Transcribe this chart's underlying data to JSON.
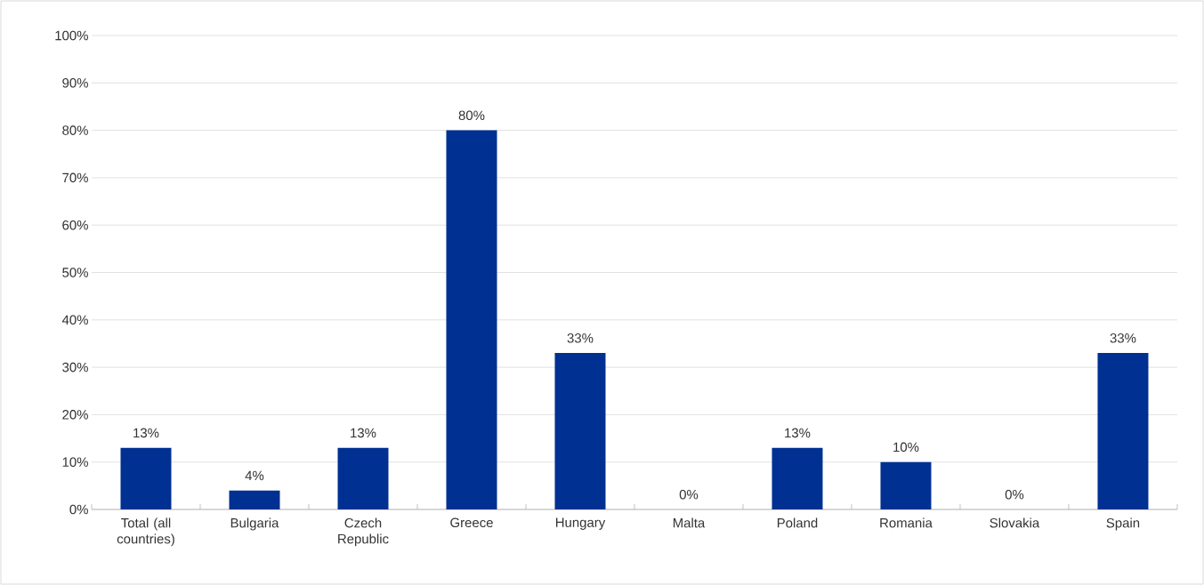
{
  "chart_data": {
    "type": "bar",
    "categories": [
      "Total (all countries)",
      "Bulgaria",
      "Czech Republic",
      "Greece",
      "Hungary",
      "Malta",
      "Poland",
      "Romania",
      "Slovakia",
      "Spain"
    ],
    "values": [
      13,
      4,
      13,
      80,
      33,
      0,
      13,
      10,
      0,
      33
    ],
    "value_labels": [
      "13%",
      "4%",
      "13%",
      "80%",
      "33%",
      "0%",
      "13%",
      "10%",
      "0%",
      "33%"
    ],
    "color": "#003092",
    "ylim": [
      0,
      100
    ],
    "yticks": [
      {
        "value": 0,
        "label": "0%"
      },
      {
        "value": 10,
        "label": "10%"
      },
      {
        "value": 20,
        "label": "20%"
      },
      {
        "value": 30,
        "label": "30%"
      },
      {
        "value": 40,
        "label": "40%"
      },
      {
        "value": 50,
        "label": "50%"
      },
      {
        "value": 60,
        "label": "60%"
      },
      {
        "value": 70,
        "label": "70%"
      },
      {
        "value": 80,
        "label": "80%"
      },
      {
        "value": 90,
        "label": "90%"
      },
      {
        "value": 100,
        "label": "100%"
      }
    ],
    "grid": "y"
  }
}
